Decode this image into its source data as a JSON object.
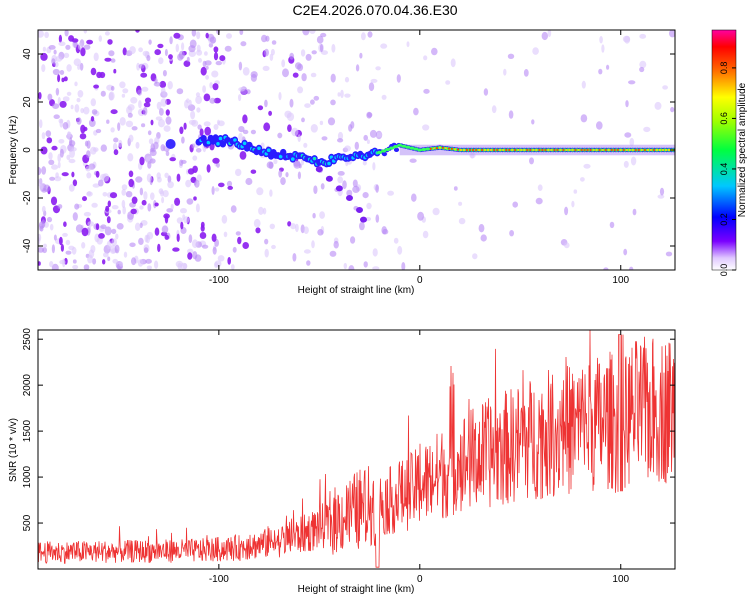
{
  "title": "C2E4.2026.070.04.36.E30",
  "chart_data": [
    {
      "type": "heatmap",
      "title": "C2E4.2026.070.04.36.E30",
      "xlabel": "Height of straight line (km)",
      "ylabel": "Frequency (Hz)",
      "xlim": [
        -190,
        127
      ],
      "ylim": [
        -50,
        50
      ],
      "xticks": [
        -100,
        0,
        100
      ],
      "xtick_labels": [
        "-100",
        "0",
        "100"
      ],
      "yticks": [
        -40,
        -20,
        0,
        20,
        40
      ],
      "ytick_labels": [
        "-40",
        "-20",
        "0",
        "20",
        "40"
      ],
      "colorbar": {
        "label": "Normalized spectral amplitude",
        "range": [
          0,
          0.95
        ],
        "ticks": [
          0.0,
          0.2,
          0.4,
          0.6,
          0.8
        ],
        "tick_labels": [
          "0.0",
          "0.2",
          "0.4",
          "0.6",
          "0.8"
        ]
      },
      "ridge": {
        "description_points_x": [
          -110,
          -100,
          -90,
          -80,
          -70,
          -60,
          -50,
          -40,
          -30,
          -20,
          -10,
          0,
          10,
          20,
          40,
          60,
          80,
          100,
          127
        ],
        "description_points_y": [
          4,
          4,
          3,
          0,
          -2,
          -3,
          -5,
          -4,
          -2,
          -1,
          2,
          0,
          1,
          0,
          0,
          0,
          0,
          0,
          0
        ],
        "branch_x": [
          -50,
          -45,
          -40,
          -35,
          -30,
          -28
        ],
        "branch_y": [
          -8,
          -12,
          -16,
          -20,
          -25,
          -29
        ]
      }
    },
    {
      "type": "line",
      "xlabel": "Height of straight line (km)",
      "ylabel": "SNR (10 * v/v)",
      "xlim": [
        -190,
        127
      ],
      "ylim": [
        0,
        2600
      ],
      "xticks": [
        -100,
        0,
        100
      ],
      "xtick_labels": [
        "-100",
        "0",
        "100"
      ],
      "yticks": [
        500,
        1000,
        1500,
        2000,
        2500
      ],
      "ytick_labels": [
        "500",
        "1000",
        "1500",
        "2000",
        "2500"
      ],
      "series": [
        {
          "name": "SNR",
          "color": "#ee3333",
          "trend_x": [
            -190,
            -150,
            -110,
            -90,
            -70,
            -60,
            -50,
            -40,
            -30,
            -20,
            -10,
            0,
            20,
            40,
            60,
            80,
            95,
            100,
            105,
            127
          ],
          "trend_y": [
            180,
            190,
            200,
            230,
            300,
            360,
            450,
            550,
            650,
            700,
            780,
            900,
            1150,
            1300,
            1450,
            1550,
            1620,
            1500,
            1700,
            1750
          ]
        }
      ]
    }
  ]
}
